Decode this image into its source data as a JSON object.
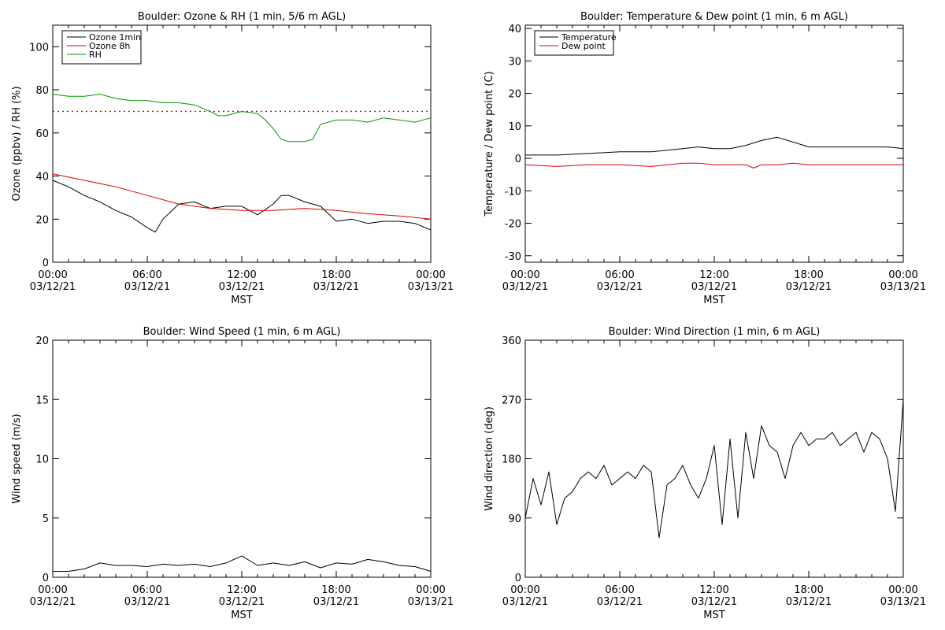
{
  "chart_data": [
    {
      "type": "line",
      "title": "Boulder: Ozone & RH (1 min, 5/6 m AGL)",
      "xlabel": "MST",
      "ylabel": "Ozone (ppbv) / RH (%)",
      "x_ticks": [
        [
          "00:00",
          "03/12/21"
        ],
        [
          "06:00",
          "03/12/21"
        ],
        [
          "12:00",
          "03/12/21"
        ],
        [
          "18:00",
          "03/12/21"
        ],
        [
          "00:00",
          "03/13/21"
        ]
      ],
      "x_range_hours": [
        0,
        24
      ],
      "ylim": [
        0,
        110
      ],
      "y_ticks": [
        0,
        20,
        40,
        60,
        80,
        100
      ],
      "legend_position": "top-left",
      "reference_line": {
        "value": 70,
        "color": "#dd0000",
        "style": "dotted"
      },
      "series": [
        {
          "name": "Ozone 1min",
          "color": "#000000",
          "x": [
            0,
            1,
            2,
            3,
            4,
            5,
            6,
            6.5,
            7,
            8,
            9,
            10,
            11,
            12,
            13,
            14,
            14.5,
            15,
            16,
            17,
            18,
            19,
            20,
            21,
            22,
            23,
            24
          ],
          "y": [
            38,
            35,
            31,
            28,
            24,
            21,
            16,
            14,
            20,
            27,
            28,
            25,
            26,
            26,
            22,
            27,
            31,
            31,
            28,
            26,
            19,
            20,
            18,
            19,
            19,
            18,
            15
          ]
        },
        {
          "name": "Ozone 8h",
          "color": "#dd0000",
          "x": [
            0,
            2,
            4,
            6,
            8,
            10,
            12,
            14,
            16,
            18,
            20,
            22,
            24
          ],
          "y": [
            41,
            38,
            35,
            31,
            27,
            25,
            24,
            24,
            25,
            24,
            22.5,
            21.5,
            20
          ]
        },
        {
          "name": "RH",
          "color": "#009900",
          "x": [
            0,
            1,
            2,
            3,
            4,
            5,
            6,
            7,
            8,
            9,
            10,
            10.5,
            11,
            12,
            13,
            13.5,
            14,
            14.5,
            15,
            16,
            16.5,
            17,
            18,
            19,
            20,
            21,
            22,
            23,
            24
          ],
          "y": [
            78,
            77,
            77,
            78,
            76,
            75,
            75,
            74,
            74,
            73,
            70,
            68,
            68,
            70,
            69,
            66,
            62,
            57,
            56,
            56,
            57,
            64,
            66,
            66,
            65,
            67,
            66,
            65,
            67
          ]
        }
      ]
    },
    {
      "type": "line",
      "title": "Boulder: Temperature & Dew point (1 min, 6 m AGL)",
      "xlabel": "MST",
      "ylabel": "Temperature / Dew point (C)",
      "x_ticks": [
        [
          "00:00",
          "03/12/21"
        ],
        [
          "06:00",
          "03/12/21"
        ],
        [
          "12:00",
          "03/12/21"
        ],
        [
          "18:00",
          "03/12/21"
        ],
        [
          "00:00",
          "03/13/21"
        ]
      ],
      "x_range_hours": [
        0,
        24
      ],
      "ylim": [
        -32,
        41
      ],
      "y_ticks": [
        -30,
        -20,
        -10,
        0,
        10,
        20,
        30,
        40
      ],
      "legend_position": "top-left",
      "series": [
        {
          "name": "Temperature",
          "color": "#000000",
          "x": [
            0,
            2,
            4,
            6,
            8,
            10,
            11,
            12,
            13,
            14,
            15,
            16,
            17,
            18,
            19,
            20,
            21,
            22,
            23,
            24
          ],
          "y": [
            1,
            1,
            1.5,
            2,
            2,
            3,
            3.5,
            3,
            3,
            4,
            5.5,
            6.5,
            5,
            3.5,
            3.5,
            3.5,
            3.5,
            3.5,
            3.5,
            3
          ]
        },
        {
          "name": "Dew point",
          "color": "#dd0000",
          "x": [
            0,
            2,
            4,
            6,
            8,
            10,
            11,
            12,
            13,
            14,
            14.5,
            15,
            16,
            17,
            18,
            19,
            20,
            21,
            22,
            23,
            24
          ],
          "y": [
            -2,
            -2.5,
            -2,
            -2,
            -2.5,
            -1.5,
            -1.5,
            -2,
            -2,
            -2,
            -3,
            -2,
            -2,
            -1.5,
            -2,
            -2,
            -2,
            -2,
            -2,
            -2,
            -2
          ]
        }
      ]
    },
    {
      "type": "line",
      "title": "Boulder: Wind Speed (1 min, 6 m AGL)",
      "xlabel": "MST",
      "ylabel": "Wind speed (m/s)",
      "x_ticks": [
        [
          "00:00",
          "03/12/21"
        ],
        [
          "06:00",
          "03/12/21"
        ],
        [
          "12:00",
          "03/12/21"
        ],
        [
          "18:00",
          "03/12/21"
        ],
        [
          "00:00",
          "03/13/21"
        ]
      ],
      "x_range_hours": [
        0,
        24
      ],
      "ylim": [
        0,
        20
      ],
      "y_ticks": [
        0,
        5,
        10,
        15,
        20
      ],
      "series": [
        {
          "color": "#000000",
          "x": [
            0,
            1,
            2,
            3,
            4,
            5,
            6,
            7,
            8,
            9,
            10,
            11,
            12,
            13,
            14,
            15,
            16,
            17,
            18,
            19,
            20,
            21,
            22,
            23,
            24
          ],
          "y": [
            0.5,
            0.5,
            0.7,
            1.2,
            1.0,
            1.0,
            0.9,
            1.1,
            1.0,
            1.1,
            0.9,
            1.2,
            1.8,
            1.0,
            1.2,
            1.0,
            1.3,
            0.8,
            1.2,
            1.1,
            1.5,
            1.3,
            1.0,
            0.9,
            0.5
          ]
        }
      ]
    },
    {
      "type": "line",
      "title": "Boulder: Wind Direction (1 min, 6 m AGL)",
      "xlabel": "MST",
      "ylabel": "Wind direction (deg)",
      "x_ticks": [
        [
          "00:00",
          "03/12/21"
        ],
        [
          "06:00",
          "03/12/21"
        ],
        [
          "12:00",
          "03/12/21"
        ],
        [
          "18:00",
          "03/12/21"
        ],
        [
          "00:00",
          "03/13/21"
        ]
      ],
      "x_range_hours": [
        0,
        24
      ],
      "ylim": [
        0,
        360
      ],
      "y_ticks": [
        0,
        90,
        180,
        270,
        360
      ],
      "series": [
        {
          "color": "#000000",
          "x": [
            0,
            0.5,
            1,
            1.5,
            2,
            2.5,
            3,
            3.5,
            4,
            4.5,
            5,
            5.5,
            6,
            6.5,
            7,
            7.5,
            8,
            8.5,
            9,
            9.5,
            10,
            10.5,
            11,
            11.5,
            12,
            12.5,
            13,
            13.5,
            14,
            14.5,
            15,
            15.5,
            16,
            16.5,
            17,
            17.5,
            18,
            18.5,
            19,
            19.5,
            20,
            20.5,
            21,
            21.5,
            22,
            22.5,
            23,
            23.5,
            24
          ],
          "y": [
            90,
            150,
            110,
            160,
            80,
            120,
            130,
            150,
            160,
            150,
            170,
            140,
            150,
            160,
            150,
            170,
            160,
            60,
            140,
            150,
            170,
            140,
            120,
            150,
            200,
            80,
            210,
            90,
            220,
            150,
            230,
            200,
            190,
            150,
            200,
            220,
            200,
            210,
            210,
            220,
            200,
            210,
            220,
            190,
            220,
            210,
            180,
            100,
            270
          ]
        }
      ]
    }
  ]
}
